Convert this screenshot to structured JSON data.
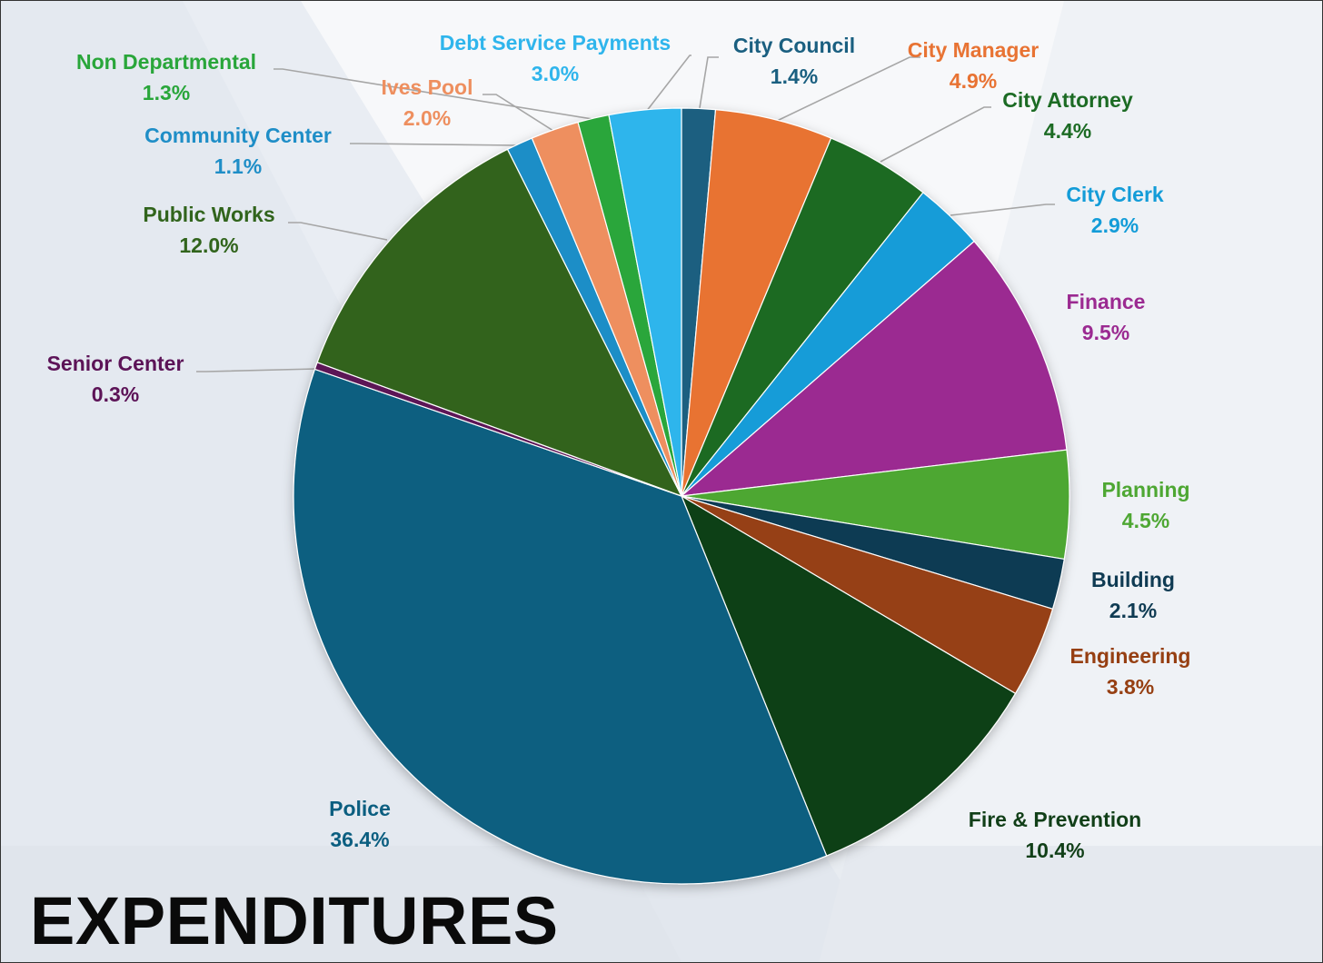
{
  "chart_data": {
    "type": "pie",
    "title": "EXPENDITURES",
    "slices": [
      {
        "label": "City Council",
        "value_label": "1.4%",
        "value": 1.4,
        "color": "#1a5f80"
      },
      {
        "label": "City Manager",
        "value_label": "4.9%",
        "value": 4.9,
        "color": "#e87333"
      },
      {
        "label": "City Attorney",
        "value_label": "4.4%",
        "value": 4.4,
        "color": "#1c6b24"
      },
      {
        "label": "City Clerk",
        "value_label": "2.9%",
        "value": 2.9,
        "color": "#139cd8"
      },
      {
        "label": "Finance",
        "value_label": "9.5%",
        "value": 9.5,
        "color": "#9b2a91"
      },
      {
        "label": "Planning",
        "value_label": "4.5%",
        "value": 4.5,
        "color": "#4ea733"
      },
      {
        "label": "Building",
        "value_label": "2.1%",
        "value": 2.1,
        "color": "#0f3b53"
      },
      {
        "label": "Engineering",
        "value_label": "3.8%",
        "value": 3.8,
        "color": "#963f12"
      },
      {
        "label": "Fire & Prevention",
        "value_label": "10.4%",
        "value": 10.4,
        "color": "#113f18"
      },
      {
        "label": "Police",
        "value_label": "36.4%",
        "value": 36.4,
        "color": "#0b5e80"
      },
      {
        "label": "Senior Center",
        "value_label": "0.3%",
        "value": 0.3,
        "color": "#5c1357"
      },
      {
        "label": "Public Works",
        "value_label": "12.0%",
        "value": 12.0,
        "color": "#31641c"
      },
      {
        "label": "Community Center",
        "value_label": "1.1%",
        "value": 1.1,
        "color": "#1f8ec7"
      },
      {
        "label": "Ives Pool",
        "value_label": "2.0%",
        "value": 2.0,
        "color": "#ee8f5f"
      },
      {
        "label": "Non Departmental",
        "value_label": "1.3%",
        "value": 1.3,
        "color": "#29a63a"
      },
      {
        "label": "Debt Service Payments",
        "value_label": "3.0%",
        "value": 3.0,
        "color": "#2fb5ec"
      }
    ]
  }
}
